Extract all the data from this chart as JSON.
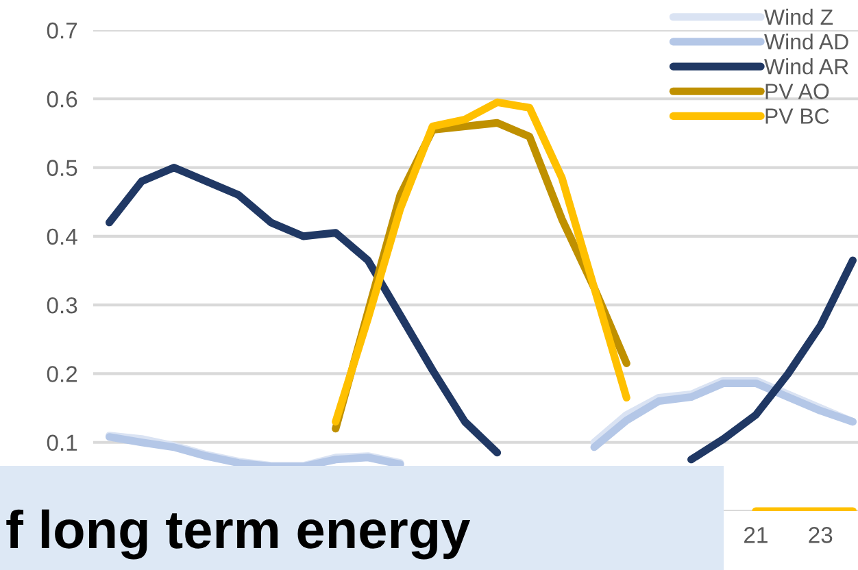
{
  "chart_data": {
    "type": "line",
    "categories": [
      null,
      null,
      null,
      null,
      null,
      null,
      null,
      null,
      null,
      null,
      null,
      null,
      null,
      null,
      null,
      null,
      null,
      null,
      null,
      null,
      "21",
      null,
      "23",
      null
    ],
    "series": [
      {
        "name": "Wind Z",
        "color": "#dae3f3",
        "values": [
          0.11,
          0.105,
          0.095,
          0.082,
          0.072,
          0.066,
          0.066,
          0.078,
          0.08,
          0.07,
          null,
          null,
          null,
          null,
          null,
          0.1,
          0.14,
          0.165,
          0.17,
          0.19,
          0.19,
          0.17,
          0.15,
          0.13
        ]
      },
      {
        "name": "Wind AD",
        "color": "#b4c7e7",
        "values": [
          0.108,
          0.1,
          0.093,
          0.08,
          0.07,
          0.065,
          0.065,
          0.075,
          0.078,
          0.068,
          null,
          null,
          null,
          null,
          null,
          0.093,
          0.132,
          0.16,
          0.166,
          0.186,
          0.186,
          0.166,
          0.146,
          0.13
        ]
      },
      {
        "name": "Wind AR",
        "color": "#203864",
        "values": [
          0.42,
          0.48,
          0.5,
          0.48,
          0.46,
          0.42,
          0.4,
          0.405,
          0.365,
          0.285,
          0.205,
          0.13,
          0.085,
          null,
          null,
          null,
          null,
          null,
          0.075,
          0.105,
          0.14,
          0.2,
          0.27,
          0.365
        ]
      },
      {
        "name": "PV AO",
        "color": "#bf9000",
        "values": [
          null,
          null,
          null,
          null,
          null,
          null,
          null,
          0.12,
          0.29,
          0.46,
          0.555,
          0.56,
          0.565,
          0.545,
          0.425,
          0.325,
          0.215,
          null,
          null,
          null,
          null,
          null,
          null,
          null
        ]
      },
      {
        "name": "PV BC",
        "color": "#ffc000",
        "values": [
          null,
          null,
          null,
          null,
          null,
          null,
          null,
          0.13,
          0.28,
          0.44,
          0.56,
          0.57,
          0.595,
          0.587,
          0.485,
          0.325,
          0.165,
          null,
          null,
          null,
          0,
          0,
          0,
          0
        ]
      }
    ],
    "ylim": [
      0,
      0.7
    ],
    "yticks": [
      {
        "value": 0,
        "label": null
      },
      0.1,
      0.2,
      0.3,
      0.4,
      0.5,
      0.6,
      0.7
    ],
    "grid": "y",
    "legend": "top right",
    "annotations": [
      "f long term energy"
    ]
  }
}
